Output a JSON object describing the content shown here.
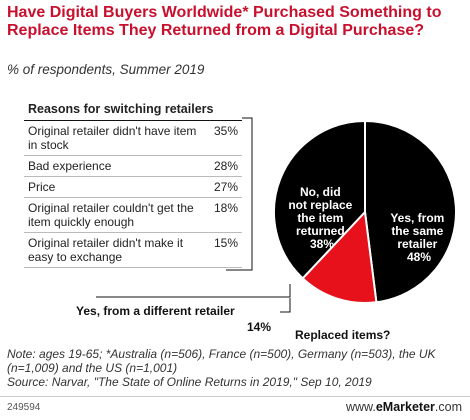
{
  "title": "Have Digital Buyers Worldwide* Purchased Something to Replace Items They Returned from a Digital Purchase?",
  "subtitle": "% of respondents, Summer 2019",
  "reasons": {
    "header": "Reasons for switching retailers",
    "rows": [
      {
        "label": "Original retailer didn't have item in stock",
        "value": "35%"
      },
      {
        "label": "Bad experience",
        "value": "28%"
      },
      {
        "label": "Price",
        "value": "27%"
      },
      {
        "label": "Original retailer couldn't get the item quickly enough",
        "value": "18%"
      },
      {
        "label": "Original retailer didn't make it easy to exchange",
        "value": "15%"
      }
    ]
  },
  "chart_data": {
    "type": "pie",
    "slices": [
      {
        "label": "Yes, from the same retailer",
        "value": 48,
        "color": "#000000"
      },
      {
        "label": "Yes, from a different retailer",
        "value": 14,
        "color": "#e6111b"
      },
      {
        "label": "No, did not replace the item returned",
        "value": 38,
        "color": "#000000"
      }
    ]
  },
  "labels": {
    "same_name": [
      "Yes, from",
      "the same",
      "retailer"
    ],
    "same_value": "48%",
    "no_name": [
      "No, did",
      "not replace",
      "the item",
      "returned"
    ],
    "no_value": "38%",
    "diff_name": "Yes, from a different retailer",
    "diff_value": "14%",
    "replaced": "Replaced items?"
  },
  "footnote": {
    "note": "Note: ages 19-65; *Australia (n=506), France (n=500), Germany (n=503), the UK (n=1,009) and the US (n=1,001)",
    "source": "Source: Narvar, \"The State of Online Returns in 2019,\" Sep 10, 2019"
  },
  "footer": {
    "code": "249594",
    "brand_prefix": "www.",
    "brand_name": "eMarketer",
    "brand_suffix": ".com"
  }
}
